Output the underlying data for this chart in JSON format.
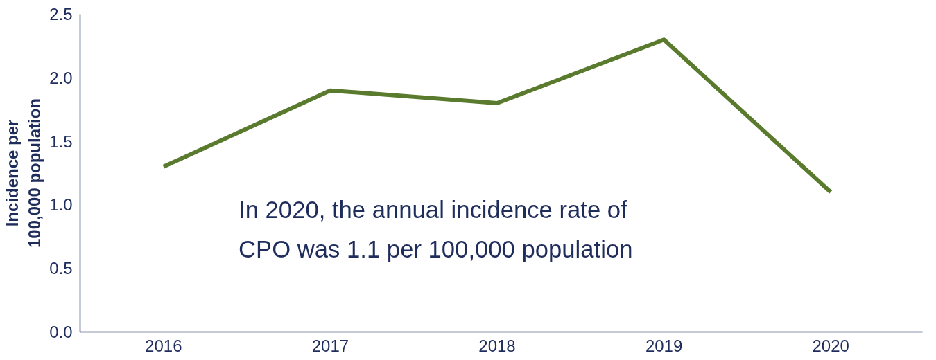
{
  "chart_data": {
    "type": "line",
    "ylabel": "Incidence per\n100,000 population",
    "categories": [
      "2016",
      "2017",
      "2018",
      "2019",
      "2020"
    ],
    "series": [
      {
        "color": "#5a7a2e",
        "values": [
          1.3,
          1.9,
          1.8,
          2.3,
          1.1
        ]
      }
    ],
    "ylim": [
      0,
      2.5
    ],
    "yticks": [
      {
        "value": 0,
        "label": "0.0"
      },
      0.5,
      {
        "value": 1,
        "label": "1.0"
      },
      1.5,
      {
        "value": 2,
        "label": "2.0"
      },
      2.5
    ],
    "grid": false,
    "marker": "none",
    "line_style": "solid",
    "annotations": [
      "In 2020, the annual incidence rate of\nCPO was 1.1 per 100,000 population"
    ]
  }
}
